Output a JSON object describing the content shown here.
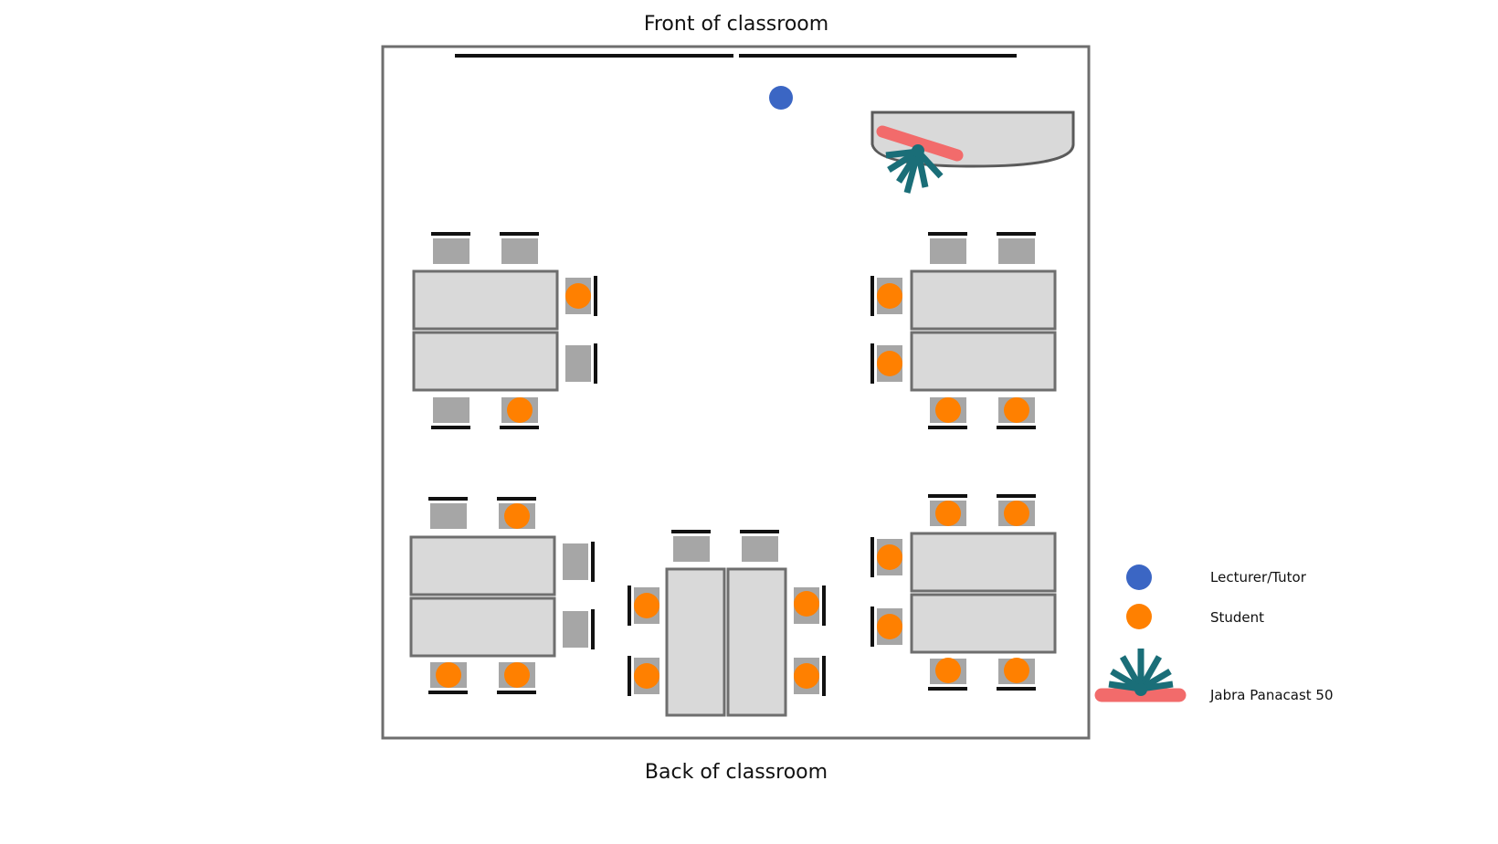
{
  "labels": {
    "front": "Front of classroom",
    "back": "Back of classroom"
  },
  "legend": [
    {
      "icon": "lecturer-dot",
      "label": "Lecturer/Tutor"
    },
    {
      "icon": "student-dot",
      "label": "Student"
    },
    {
      "icon": "camera-icon",
      "label": "Jabra Panacast 50"
    }
  ],
  "colors": {
    "room_border": "#6e6e6e",
    "table_fill": "#d9d9d9",
    "table_border": "#6e6e6e",
    "chair_fill": "#a6a6a6",
    "chair_back": "#111111",
    "student": "#ff8000",
    "lecturer": "#3b66c4",
    "camera_bar": "#f26b6b",
    "camera_rays": "#1a6e78"
  }
}
